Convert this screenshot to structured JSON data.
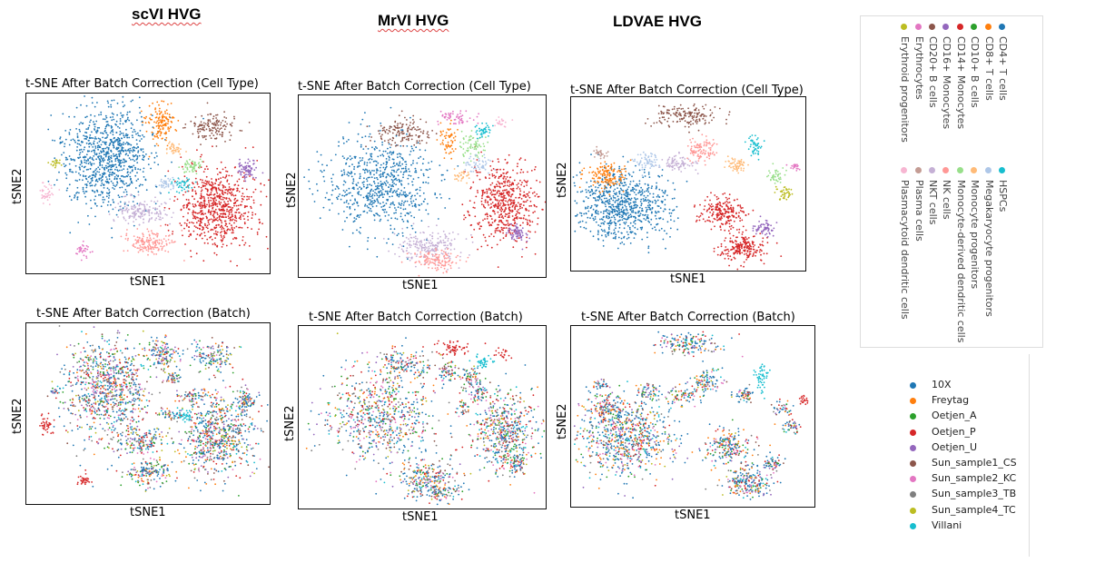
{
  "methods": [
    {
      "title": "scVI HVG"
    },
    {
      "title": "MrVI HVG"
    },
    {
      "title": "LDVAE HVG"
    }
  ],
  "panels": {
    "celltype_title": "t-SNE After Batch Correction (Cell Type)",
    "batch_title": "t-SNE After Batch Correction (Batch)",
    "xlabel": "tSNE1",
    "ylabel": "tSNE2"
  },
  "celltype_legend": {
    "group1": [
      {
        "label": "CD4+ T cells",
        "color": "#1f77b4"
      },
      {
        "label": "CD8+ T cells",
        "color": "#ff7f0e"
      },
      {
        "label": "CD10+ B cells",
        "color": "#2ca02c"
      },
      {
        "label": "CD14+ Monocytes",
        "color": "#d62728"
      },
      {
        "label": "CD16+ Monocytes",
        "color": "#9467bd"
      },
      {
        "label": "CD20+ B cells",
        "color": "#8c564b"
      },
      {
        "label": "Erythrocytes",
        "color": "#e377c2"
      },
      {
        "label": "Erythroid progenitors",
        "color": "#bcbd22"
      }
    ],
    "group2": [
      {
        "label": "HSPCs",
        "color": "#17becf"
      },
      {
        "label": "Megakaryocyte progenitors",
        "color": "#aec7e8"
      },
      {
        "label": "Monocyte progenitors",
        "color": "#ffbb78"
      },
      {
        "label": "Monocyte-derived dendritic cells",
        "color": "#98df8a"
      },
      {
        "label": "NK cells",
        "color": "#ff9896"
      },
      {
        "label": "NKT cells",
        "color": "#c5b0d5"
      },
      {
        "label": "Plasma cells",
        "color": "#c49c94"
      },
      {
        "label": "Plasmacytoid dendritic cells",
        "color": "#f7b6d2"
      }
    ]
  },
  "batch_legend": [
    {
      "label": "10X",
      "color": "#1f77b4"
    },
    {
      "label": "Freytag",
      "color": "#ff7f0e"
    },
    {
      "label": "Oetjen_A",
      "color": "#2ca02c"
    },
    {
      "label": "Oetjen_P",
      "color": "#d62728"
    },
    {
      "label": "Oetjen_U",
      "color": "#9467bd"
    },
    {
      "label": "Sun_sample1_CS",
      "color": "#8c564b"
    },
    {
      "label": "Sun_sample2_KC",
      "color": "#e377c2"
    },
    {
      "label": "Sun_sample3_TB",
      "color": "#7f7f7f"
    },
    {
      "label": "Sun_sample4_TC",
      "color": "#bcbd22"
    },
    {
      "label": "Villani",
      "color": "#17becf"
    }
  ],
  "chart_data": [
    {
      "type": "scatter",
      "title": "t-SNE After Batch Correction (Cell Type)",
      "method": "scVI HVG",
      "xlabel": "tSNE1",
      "ylabel": "tSNE2",
      "color_by": "cell type",
      "ticks": "none"
    },
    {
      "type": "scatter",
      "title": "t-SNE After Batch Correction (Cell Type)",
      "method": "MrVI HVG",
      "xlabel": "tSNE1",
      "ylabel": "tSNE2",
      "color_by": "cell type",
      "ticks": "none"
    },
    {
      "type": "scatter",
      "title": "t-SNE After Batch Correction (Cell Type)",
      "method": "LDVAE HVG",
      "xlabel": "tSNE1",
      "ylabel": "tSNE2",
      "color_by": "cell type",
      "ticks": "none"
    },
    {
      "type": "scatter",
      "title": "t-SNE After Batch Correction (Batch)",
      "method": "scVI HVG",
      "xlabel": "tSNE1",
      "ylabel": "tSNE2",
      "color_by": "batch",
      "ticks": "none"
    },
    {
      "type": "scatter",
      "title": "t-SNE After Batch Correction (Batch)",
      "method": "MrVI HVG",
      "xlabel": "tSNE1",
      "ylabel": "tSNE2",
      "color_by": "batch",
      "ticks": "none"
    },
    {
      "type": "scatter",
      "title": "t-SNE After Batch Correction (Batch)",
      "method": "LDVAE HVG",
      "xlabel": "tSNE1",
      "ylabel": "tSNE2",
      "color_by": "batch",
      "ticks": "none"
    }
  ]
}
